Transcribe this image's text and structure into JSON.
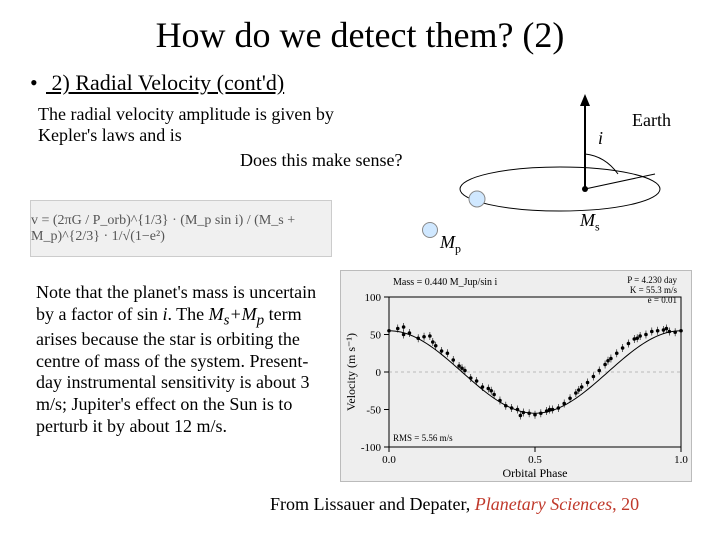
{
  "title": "How do we detect them? (2)",
  "bullet": "2) Radial Velocity (cont'd)",
  "intro": "The radial velocity amplitude is given by Kepler's laws and is",
  "sense": "Does this make sense?",
  "formula_alt": "v = (2πG / P_orb)^{1/3} · (M_p sin i) / (M_s + M_p)^{2/3} · 1/√(1−e²)",
  "labels": {
    "i": "i",
    "earth": "Earth",
    "mp": "M",
    "mp_sub": "p",
    "ms": "M",
    "ms_sub": "s"
  },
  "note_html_parts": {
    "a": "Note that the planet's mass is uncertain by a factor of sin ",
    "b": ". The ",
    "c": " term arises because the star is orbiting the centre of mass of the system. Present-day instrumental sensitivity is about 3 m/s; Jupiter's effect on the Sun is to perturb it by about 12 m/s."
  },
  "chart": {
    "title_left": "Mass = 0.440 M_Jup/sin i",
    "title_right_1": "P = 4.230 day",
    "title_right_2": "K = 55.3 m/s",
    "title_right_3": "e = 0.01",
    "ylabel": "Velocity (m s⁻¹)",
    "xlabel": "Orbital Phase",
    "rms": "RMS = 5.56 m/s",
    "xlim": [
      0.0,
      1.0
    ],
    "ylim": [
      -100,
      100
    ],
    "ytick_step": 50,
    "xtick_step": 0.5,
    "background_color": "#eeeeee",
    "axis_color": "#000000",
    "point_color": "#000000",
    "line_color": "#000000",
    "amplitude": 55,
    "data": [
      [
        0.0,
        55
      ],
      [
        0.03,
        58
      ],
      [
        0.05,
        50
      ],
      [
        0.07,
        52
      ],
      [
        0.1,
        45
      ],
      [
        0.12,
        47
      ],
      [
        0.14,
        48
      ],
      [
        0.16,
        35
      ],
      [
        0.18,
        28
      ],
      [
        0.2,
        25
      ],
      [
        0.22,
        16
      ],
      [
        0.24,
        8
      ],
      [
        0.26,
        2
      ],
      [
        0.28,
        -8
      ],
      [
        0.3,
        -12
      ],
      [
        0.32,
        -20
      ],
      [
        0.34,
        -22
      ],
      [
        0.36,
        -30
      ],
      [
        0.38,
        -38
      ],
      [
        0.4,
        -45
      ],
      [
        0.42,
        -48
      ],
      [
        0.44,
        -50
      ],
      [
        0.46,
        -54
      ],
      [
        0.48,
        -55
      ],
      [
        0.5,
        -57
      ],
      [
        0.52,
        -55
      ],
      [
        0.54,
        -52
      ],
      [
        0.56,
        -50
      ],
      [
        0.58,
        -48
      ],
      [
        0.6,
        -42
      ],
      [
        0.62,
        -35
      ],
      [
        0.64,
        -28
      ],
      [
        0.66,
        -20
      ],
      [
        0.68,
        -14
      ],
      [
        0.7,
        -6
      ],
      [
        0.72,
        2
      ],
      [
        0.74,
        10
      ],
      [
        0.76,
        18
      ],
      [
        0.78,
        25
      ],
      [
        0.8,
        32
      ],
      [
        0.82,
        38
      ],
      [
        0.84,
        44
      ],
      [
        0.86,
        48
      ],
      [
        0.88,
        50
      ],
      [
        0.9,
        54
      ],
      [
        0.92,
        55
      ],
      [
        0.94,
        56
      ],
      [
        0.96,
        54
      ],
      [
        0.98,
        53
      ],
      [
        1.0,
        55
      ],
      [
        0.05,
        60
      ],
      [
        0.15,
        40
      ],
      [
        0.25,
        5
      ],
      [
        0.35,
        -25
      ],
      [
        0.45,
        -58
      ],
      [
        0.55,
        -50
      ],
      [
        0.65,
        -24
      ],
      [
        0.75,
        15
      ],
      [
        0.85,
        45
      ],
      [
        0.95,
        58
      ]
    ]
  },
  "citation": {
    "lead": "From Lissauer and Depater, ",
    "ital": "Planetary Sciences",
    "trail": ", 20"
  },
  "colors": {
    "bg": "#ffffff",
    "text": "#000000",
    "red": "#c0392b",
    "chart_bg": "#eeeeee"
  }
}
